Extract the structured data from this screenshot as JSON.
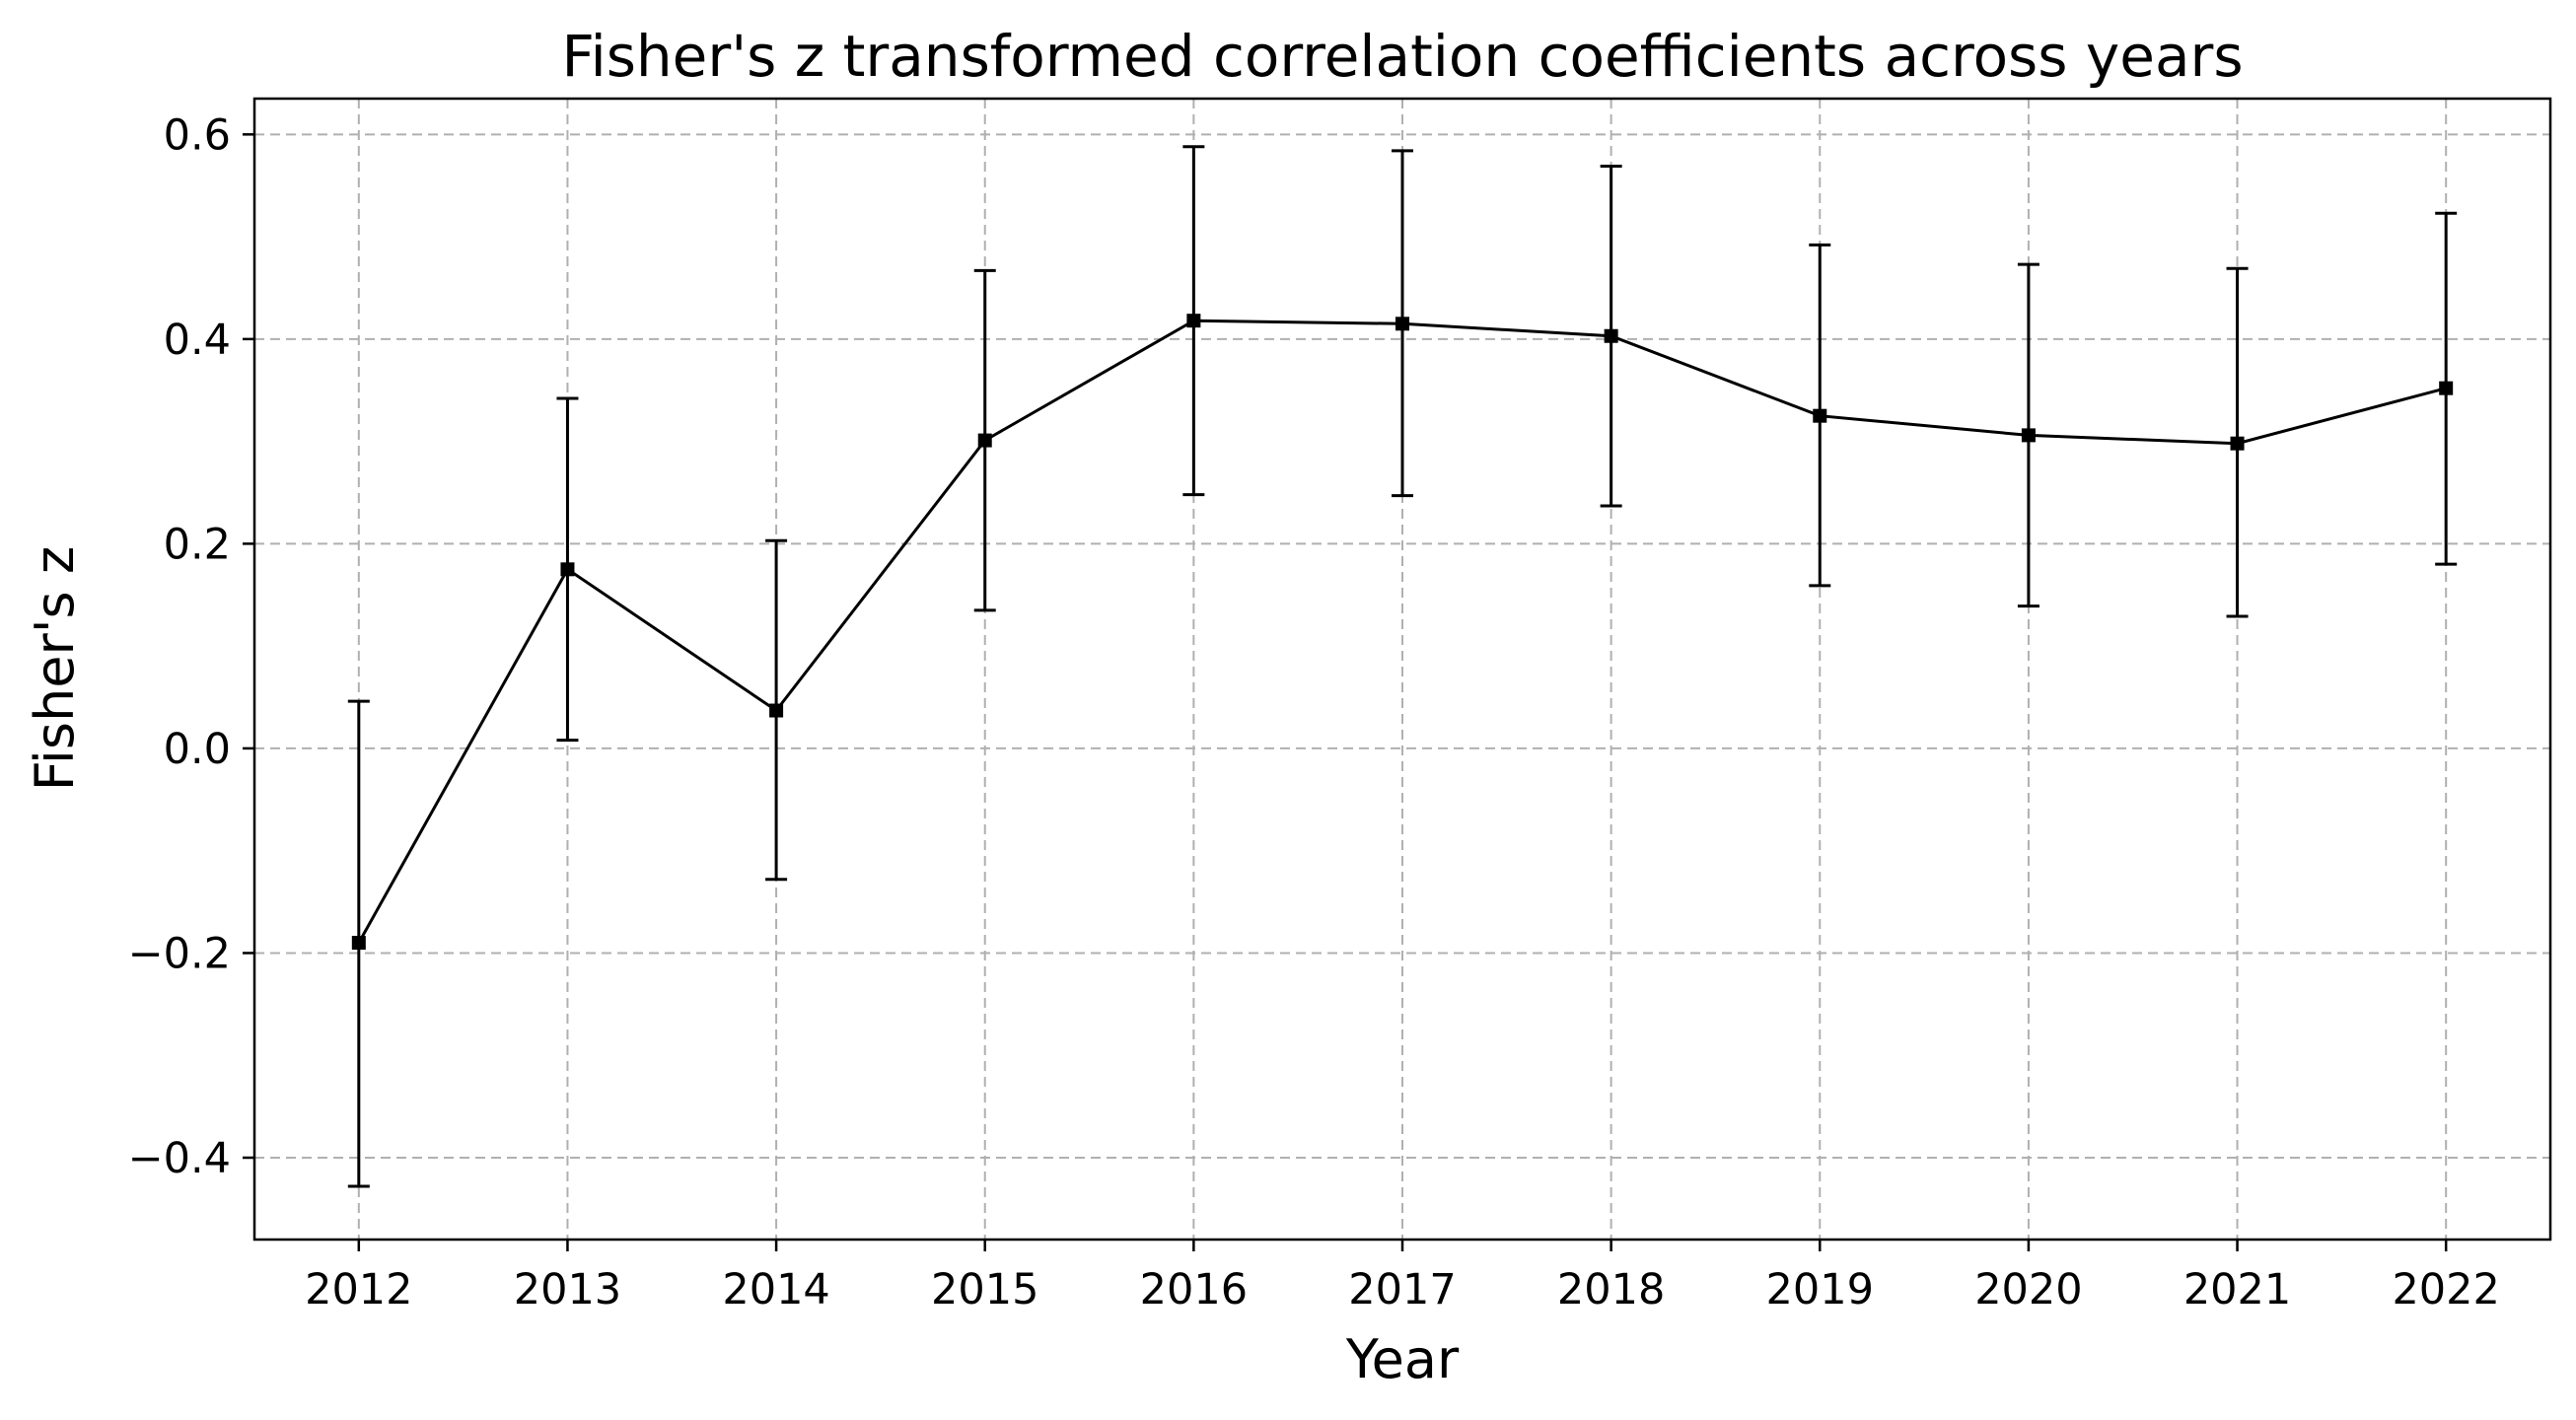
{
  "chart_data": {
    "type": "line",
    "title": "Fisher's z transformed correlation coefficients across years",
    "xlabel": "Year",
    "ylabel": "Fisher's z",
    "x": [
      2012,
      2013,
      2014,
      2015,
      2016,
      2017,
      2018,
      2019,
      2020,
      2021,
      2022
    ],
    "x_tick_labels": [
      "2012",
      "2013",
      "2014",
      "2015",
      "2016",
      "2017",
      "2018",
      "2019",
      "2020",
      "2021",
      "2022"
    ],
    "y_ticks": [
      -0.4,
      -0.2,
      0.0,
      0.2,
      0.4,
      0.6
    ],
    "y_tick_labels": [
      "−0.4",
      "−0.2",
      "0.0",
      "0.2",
      "0.4",
      "0.6"
    ],
    "xlim": [
      2011.5,
      2022.5
    ],
    "ylim": [
      -0.48,
      0.635
    ],
    "grid": true,
    "series": [
      {
        "values": [
          -0.19,
          0.175,
          0.037,
          0.301,
          0.418,
          0.415,
          0.403,
          0.325,
          0.306,
          0.298,
          0.352
        ],
        "err_lower": [
          -0.428,
          0.008,
          -0.128,
          0.135,
          0.248,
          0.247,
          0.237,
          0.159,
          0.139,
          0.129,
          0.18
        ],
        "err_upper": [
          0.046,
          0.342,
          0.203,
          0.467,
          0.588,
          0.584,
          0.569,
          0.492,
          0.473,
          0.469,
          0.523
        ],
        "color": "#000000",
        "marker": "square"
      }
    ]
  }
}
